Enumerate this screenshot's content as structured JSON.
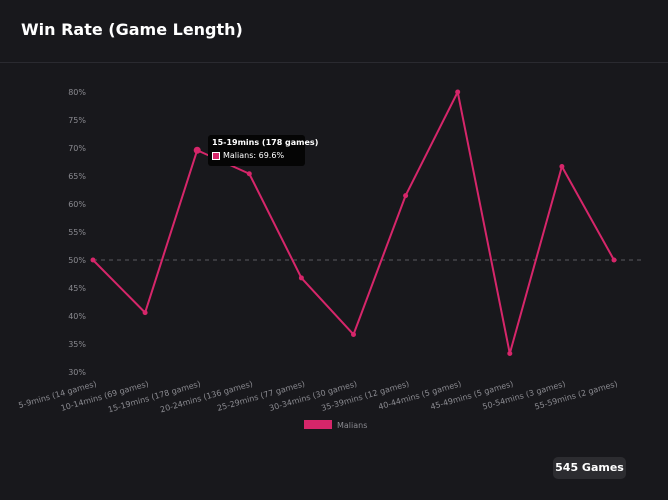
{
  "header": {
    "title": "Win Rate (Game Length)"
  },
  "footer": {
    "games_badge": "545 Games"
  },
  "tooltip": {
    "title": "15-19mins (178 games)",
    "label": "Malians: 69.6%"
  },
  "colors": {
    "series": "#d6266a",
    "background": "#18181c",
    "tick_text": "#8a8a90"
  },
  "chart_data": {
    "type": "line",
    "title": "",
    "xlabel": "",
    "ylabel": "",
    "categories": [
      "5-9mins (14 games)",
      "10-14mins (69 games)",
      "15-19mins (178 games)",
      "20-24mins (136 games)",
      "25-29mins (77 games)",
      "30-34mins (30 games)",
      "35-39mins (12 games)",
      "40-44mins (5 games)",
      "45-49mins (5 games)",
      "50-54mins (3 games)",
      "55-59mins (2 games)"
    ],
    "series": [
      {
        "name": "Malians",
        "values": [
          50,
          40.6,
          69.6,
          65.4,
          46.8,
          36.7,
          61.5,
          80,
          33.3,
          66.7,
          50
        ]
      }
    ],
    "ylim": [
      30,
      80
    ],
    "yticks": [
      30,
      35,
      40,
      45,
      50,
      55,
      60,
      65,
      70,
      75,
      80
    ],
    "ytick_labels": [
      "30%",
      "35%",
      "40%",
      "45%",
      "50%",
      "55%",
      "60%",
      "65%",
      "70%",
      "75%",
      "80%"
    ],
    "reference_line": 50,
    "grid": false,
    "legend_position": "bottom"
  }
}
